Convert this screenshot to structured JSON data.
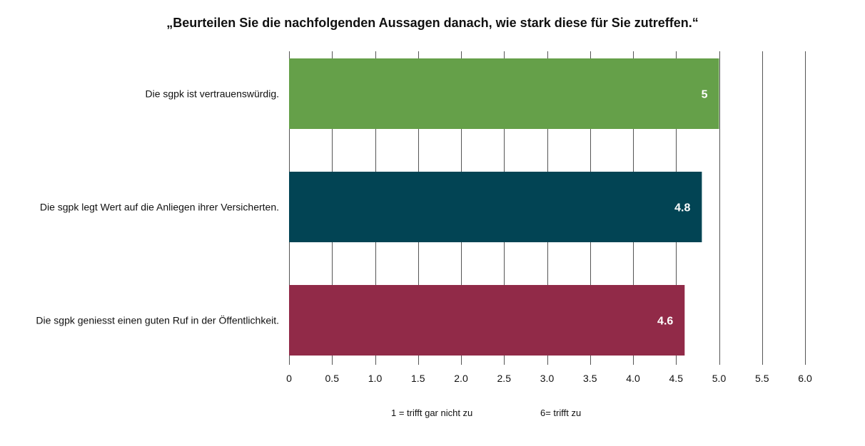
{
  "chart_data": {
    "type": "bar",
    "orientation": "horizontal",
    "title": "„Beurteilen Sie die nachfolgenden Aussagen danach, wie stark diese für Sie zutreffen.“",
    "categories": [
      "Die sgpk ist vertrauenswürdig.",
      "Die sgpk legt Wert auf die Anliegen ihrer Versicherten.",
      "Die sgpk geniesst einen guten Ruf in der Öffentlichkeit."
    ],
    "values": [
      5,
      4.8,
      4.6
    ],
    "value_labels": [
      "5",
      "4.8",
      "4.6"
    ],
    "colors": [
      "#65a049",
      "#024454",
      "#912a48"
    ],
    "xlim": [
      0,
      6
    ],
    "ticks": [
      0,
      0.5,
      1.0,
      1.5,
      2.0,
      2.5,
      3.0,
      3.5,
      4.0,
      4.5,
      5.0,
      5.5,
      6.0
    ],
    "tick_labels": [
      "0",
      "0.5",
      "1.0",
      "1.5",
      "2.0",
      "2.5",
      "3.0",
      "3.5",
      "4.0",
      "4.5",
      "5.0",
      "5.5",
      "6.0"
    ],
    "grid": true
  },
  "notes": {
    "scale_min": "1 = trifft gar nicht zu",
    "scale_max": "6= trifft zu"
  }
}
